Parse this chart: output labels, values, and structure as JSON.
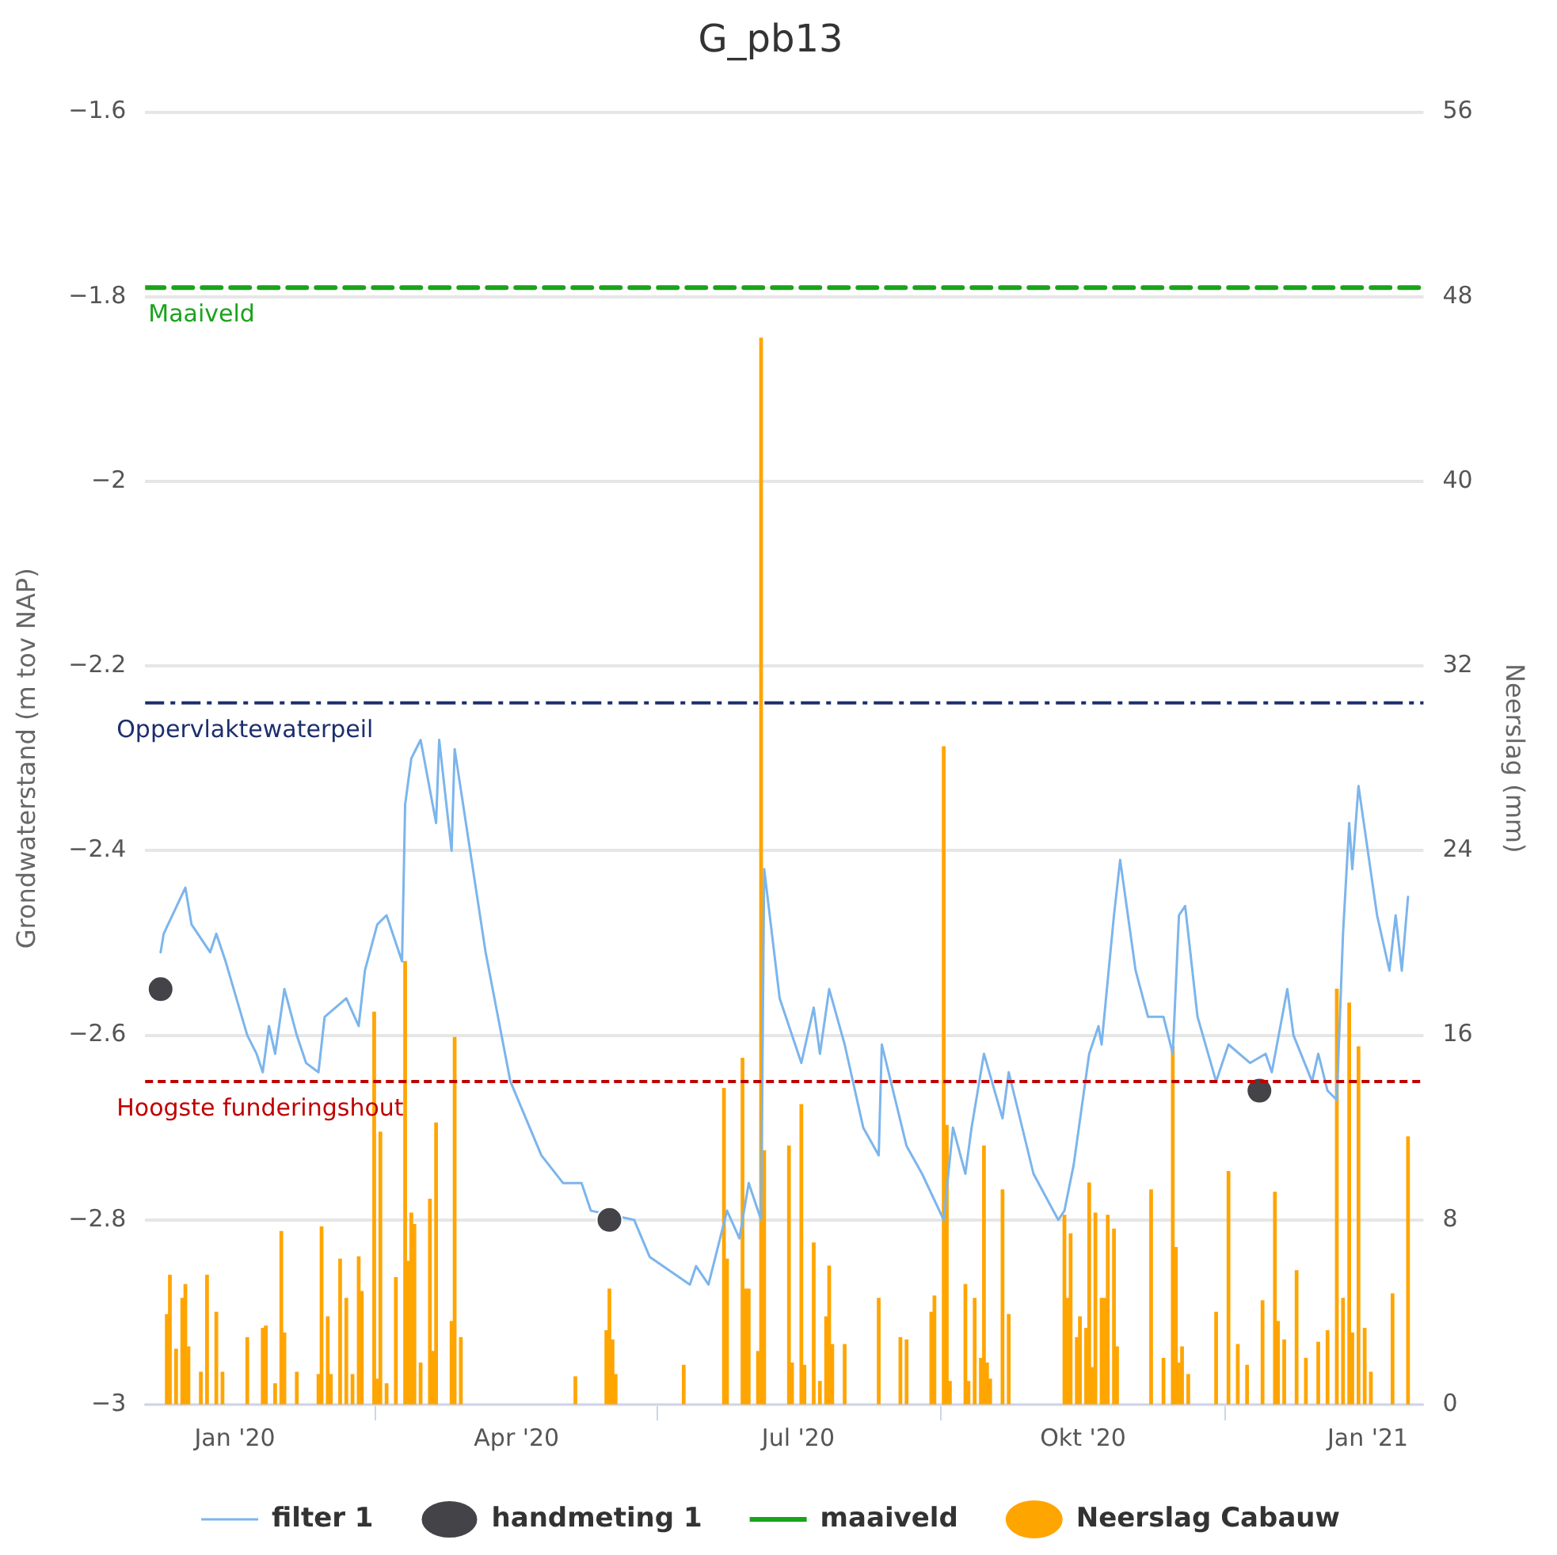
{
  "chart_data": {
    "type": "line",
    "title": "G_pb13",
    "ylabel": "Grondwaterstand (m tov NAP)",
    "y2label": "Neerslag (mm)",
    "xlim": [
      "2019-12-03",
      "2021-01-19"
    ],
    "xticks": [
      {
        "value": "2020-01-01",
        "label": "Jan '20"
      },
      {
        "value": "2020-04-01",
        "label": "Apr '20"
      },
      {
        "value": "2020-07-01",
        "label": "Jul '20"
      },
      {
        "value": "2020-10-01",
        "label": "Okt '20"
      },
      {
        "value": "2021-01-01",
        "label": "Jan '21"
      }
    ],
    "ylim": [
      -3,
      -1.6
    ],
    "yticks": [
      -3,
      -2.8,
      -2.6,
      -2.4,
      -2.2,
      -2,
      -1.8,
      -1.6
    ],
    "y2lim": [
      0,
      56
    ],
    "y2ticks": [
      0,
      8,
      16,
      24,
      32,
      40,
      48,
      56
    ],
    "grid": "y",
    "legend": "bottom",
    "series": [
      {
        "name": "Neerslag Cabauw",
        "type": "bar",
        "axis": "y2",
        "color": "#ffa500",
        "x": [
          "2019-12-10",
          "2019-12-11",
          "2019-12-13",
          "2019-12-15",
          "2019-12-16",
          "2019-12-17",
          "2019-12-21",
          "2019-12-23",
          "2019-12-26",
          "2019-12-28",
          "2020-01-05",
          "2020-01-10",
          "2020-01-11",
          "2020-01-14",
          "2020-01-16",
          "2020-01-17",
          "2020-01-21",
          "2020-01-28",
          "2020-01-29",
          "2020-01-31",
          "2020-02-01",
          "2020-02-04",
          "2020-02-06",
          "2020-02-08",
          "2020-02-10",
          "2020-02-11",
          "2020-02-15",
          "2020-02-16",
          "2020-02-17",
          "2020-02-19",
          "2020-02-22",
          "2020-02-25",
          "2020-02-26",
          "2020-02-27",
          "2020-02-28",
          "2020-03-01",
          "2020-03-04",
          "2020-03-05",
          "2020-03-06",
          "2020-03-11",
          "2020-03-12",
          "2020-03-14",
          "2020-04-20",
          "2020-04-30",
          "2020-05-01",
          "2020-05-02",
          "2020-05-03",
          "2020-05-25",
          "2020-06-07",
          "2020-06-08",
          "2020-06-13",
          "2020-06-14",
          "2020-06-15",
          "2020-06-18",
          "2020-06-19",
          "2020-06-20",
          "2020-06-28",
          "2020-06-29",
          "2020-07-02",
          "2020-07-03",
          "2020-07-06",
          "2020-07-08",
          "2020-07-10",
          "2020-07-11",
          "2020-07-12",
          "2020-07-16",
          "2020-07-27",
          "2020-08-03",
          "2020-08-05",
          "2020-08-13",
          "2020-08-14",
          "2020-08-17",
          "2020-08-18",
          "2020-08-19",
          "2020-08-24",
          "2020-08-25",
          "2020-08-27",
          "2020-08-29",
          "2020-08-30",
          "2020-08-31",
          "2020-09-01",
          "2020-09-05",
          "2020-09-07",
          "2020-09-25",
          "2020-09-26",
          "2020-09-27",
          "2020-09-29",
          "2020-09-30",
          "2020-10-02",
          "2020-10-03",
          "2020-10-04",
          "2020-10-05",
          "2020-10-07",
          "2020-10-08",
          "2020-10-09",
          "2020-10-11",
          "2020-10-12",
          "2020-10-23",
          "2020-10-27",
          "2020-10-30",
          "2020-10-31",
          "2020-11-01",
          "2020-11-02",
          "2020-11-04",
          "2020-11-13",
          "2020-11-17",
          "2020-11-20",
          "2020-11-23",
          "2020-11-28",
          "2020-12-02",
          "2020-12-03",
          "2020-12-05",
          "2020-12-09",
          "2020-12-12",
          "2020-12-16",
          "2020-12-19",
          "2020-12-22",
          "2020-12-24",
          "2020-12-26",
          "2020-12-27",
          "2020-12-29",
          "2020-12-31",
          "2021-01-02",
          "2021-01-09",
          "2021-01-14"
        ],
        "values": [
          3.9,
          5.6,
          2.4,
          4.6,
          5.2,
          2.5,
          1.4,
          5.6,
          4.0,
          1.4,
          2.9,
          3.3,
          3.4,
          0.9,
          7.5,
          3.1,
          1.4,
          1.3,
          7.7,
          3.8,
          1.3,
          6.3,
          4.6,
          1.3,
          6.4,
          4.9,
          17.0,
          1.1,
          11.8,
          0.9,
          5.5,
          19.2,
          6.2,
          8.3,
          7.8,
          1.8,
          8.9,
          2.3,
          12.2,
          3.6,
          15.9,
          2.9,
          1.2,
          3.2,
          5.0,
          2.8,
          1.3,
          1.7,
          13.7,
          6.3,
          15.0,
          5.0,
          5.0,
          2.3,
          46.2,
          11.0,
          11.2,
          1.8,
          13.0,
          1.7,
          7.0,
          1.0,
          3.8,
          6.0,
          2.6,
          2.6,
          4.6,
          2.9,
          2.8,
          4.0,
          4.7,
          28.5,
          12.1,
          1.0,
          5.2,
          1.0,
          4.6,
          2.0,
          11.2,
          1.8,
          1.1,
          9.3,
          3.9,
          8.2,
          4.6,
          7.4,
          2.9,
          3.8,
          3.3,
          9.6,
          1.6,
          8.3,
          4.6,
          4.6,
          8.2,
          7.6,
          2.5,
          9.3,
          2.0,
          15.5,
          6.8,
          1.8,
          2.5,
          1.3,
          4.0,
          10.1,
          2.6,
          1.7,
          4.5,
          9.2,
          3.6,
          2.8,
          5.8,
          2.0,
          2.7,
          3.2,
          18.0,
          4.6,
          17.4,
          3.1,
          15.5,
          3.3,
          1.4,
          4.8,
          11.6
        ]
      },
      {
        "name": "filter 1",
        "color": "#7cb5ec",
        "marker": "none",
        "x": [
          "2019-12-08",
          "2019-12-09",
          "2019-12-16",
          "2019-12-18",
          "2019-12-24",
          "2019-12-26",
          "2019-12-29",
          "2020-01-05",
          "2020-01-08",
          "2020-01-10",
          "2020-01-12",
          "2020-01-14",
          "2020-01-17",
          "2020-01-21",
          "2020-01-24",
          "2020-01-28",
          "2020-01-30",
          "2020-02-06",
          "2020-02-10",
          "2020-02-12",
          "2020-02-16",
          "2020-02-19",
          "2020-02-24",
          "2020-02-25",
          "2020-02-27",
          "2020-03-01",
          "2020-03-06",
          "2020-03-07",
          "2020-03-11",
          "2020-03-12",
          "2020-03-17",
          "2020-03-22",
          "2020-03-30",
          "2020-04-09",
          "2020-04-16",
          "2020-04-22",
          "2020-04-25",
          "2020-05-09",
          "2020-05-14",
          "2020-05-27",
          "2020-05-29",
          "2020-06-02",
          "2020-06-08",
          "2020-06-12",
          "2020-06-15",
          "2020-06-19",
          "2020-06-20",
          "2020-06-25",
          "2020-07-02",
          "2020-07-06",
          "2020-07-08",
          "2020-07-11",
          "2020-07-16",
          "2020-07-22",
          "2020-07-27",
          "2020-07-28",
          "2020-08-05",
          "2020-08-10",
          "2020-08-17",
          "2020-08-20",
          "2020-08-24",
          "2020-08-26",
          "2020-08-30",
          "2020-09-05",
          "2020-09-07",
          "2020-09-15",
          "2020-09-23",
          "2020-09-25",
          "2020-09-28",
          "2020-10-03",
          "2020-10-06",
          "2020-10-07",
          "2020-10-11",
          "2020-10-13",
          "2020-10-18",
          "2020-10-22",
          "2020-10-27",
          "2020-10-30",
          "2020-11-01",
          "2020-11-03",
          "2020-11-07",
          "2020-11-13",
          "2020-11-17",
          "2020-11-24",
          "2020-11-29",
          "2020-12-01",
          "2020-12-06",
          "2020-12-08",
          "2020-12-14",
          "2020-12-16",
          "2020-12-19",
          "2020-12-22",
          "2020-12-24",
          "2020-12-26",
          "2020-12-27",
          "2020-12-29",
          "2021-01-04",
          "2021-01-08",
          "2021-01-10",
          "2021-01-12",
          "2021-01-14"
        ],
        "values": [
          -2.51,
          -2.49,
          -2.44,
          -2.48,
          -2.51,
          -2.49,
          -2.52,
          -2.6,
          -2.62,
          -2.64,
          -2.59,
          -2.62,
          -2.55,
          -2.6,
          -2.63,
          -2.64,
          -2.58,
          -2.56,
          -2.59,
          -2.53,
          -2.48,
          -2.47,
          -2.52,
          -2.35,
          -2.3,
          -2.28,
          -2.37,
          -2.28,
          -2.4,
          -2.29,
          -2.4,
          -2.51,
          -2.65,
          -2.73,
          -2.76,
          -2.76,
          -2.79,
          -2.8,
          -2.84,
          -2.87,
          -2.85,
          -2.87,
          -2.79,
          -2.82,
          -2.76,
          -2.8,
          -2.42,
          -2.56,
          -2.63,
          -2.57,
          -2.62,
          -2.55,
          -2.61,
          -2.7,
          -2.73,
          -2.61,
          -2.72,
          -2.75,
          -2.8,
          -2.7,
          -2.75,
          -2.7,
          -2.62,
          -2.69,
          -2.64,
          -2.75,
          -2.8,
          -2.79,
          -2.74,
          -2.62,
          -2.59,
          -2.61,
          -2.47,
          -2.41,
          -2.53,
          -2.58,
          -2.58,
          -2.62,
          -2.47,
          -2.46,
          -2.58,
          -2.65,
          -2.61,
          -2.63,
          -2.62,
          -2.64,
          -2.55,
          -2.6,
          -2.65,
          -2.62,
          -2.66,
          -2.67,
          -2.49,
          -2.37,
          -2.42,
          -2.33,
          -2.47,
          -2.53,
          -2.47,
          -2.53,
          -2.45
        ]
      },
      {
        "name": "handmeting 1",
        "type": "scatter",
        "color": "#434348",
        "marker": "circle",
        "x": [
          "2019-12-08",
          "2020-05-01",
          "2020-11-27"
        ],
        "values": [
          -2.55,
          -2.8,
          -2.66
        ]
      },
      {
        "name": "maaiveld",
        "type": "line",
        "color": "#1aa31a",
        "marker": "none",
        "line_style": "dashed",
        "x": [
          "2019-12-03",
          "2021-01-19"
        ],
        "values": [
          -1.79,
          -1.79
        ]
      }
    ],
    "ref_lines": [
      {
        "axis": "y",
        "value": -2.24,
        "label": "Oppervlaktewaterpeil",
        "color": "#1c2f6e",
        "line_style": "dashed"
      },
      {
        "axis": "y",
        "value": -2.65,
        "label": "Hoogste funderingshout",
        "color": "#c00000",
        "line_style": "dotted"
      }
    ],
    "annotations": [
      {
        "text": "Maaiveld",
        "x": "2019-12-03",
        "y": -1.79
      }
    ]
  }
}
